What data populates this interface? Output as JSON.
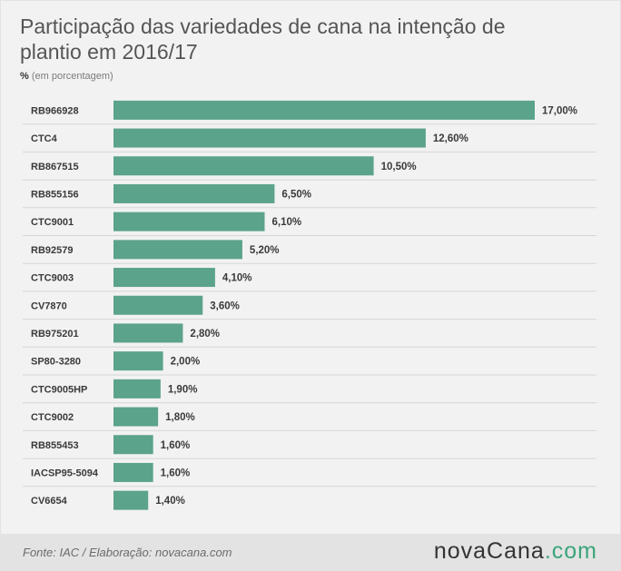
{
  "title": "Participação das variedades de cana na intenção de plantio em 2016/17",
  "unit": {
    "symbol": "%",
    "text": "(em porcentagem)"
  },
  "chart_data": {
    "type": "bar",
    "orientation": "horizontal",
    "categories": [
      "RB966928",
      "CTC4",
      "RB867515",
      "RB855156",
      "CTC9001",
      "RB92579",
      "CTC9003",
      "CV7870",
      "RB975201",
      "SP80-3280",
      "CTC9005HP",
      "CTC9002",
      "RB855453",
      "IACSP95-5094",
      "CV6654"
    ],
    "values": [
      17.0,
      12.6,
      10.5,
      6.5,
      6.1,
      5.2,
      4.1,
      3.6,
      2.8,
      2.0,
      1.9,
      1.8,
      1.6,
      1.6,
      1.4
    ],
    "value_labels": [
      "17,00%",
      "12,60%",
      "10,50%",
      "6,50%",
      "6,10%",
      "5,20%",
      "4,10%",
      "3,60%",
      "2,80%",
      "2,00%",
      "1,90%",
      "1,80%",
      "1,60%",
      "1,60%",
      "1,40%"
    ],
    "xlim": [
      0,
      17
    ],
    "bar_color": "#5ba38a",
    "row_line_color": "#d6d6d6",
    "grid": false,
    "legend": "none"
  },
  "footer": {
    "source": "Fonte: IAC / Elaboração: novacana.com",
    "brand_main": "novaCana",
    "brand_suffix": ".com",
    "accent_color": "#3aa57a"
  }
}
